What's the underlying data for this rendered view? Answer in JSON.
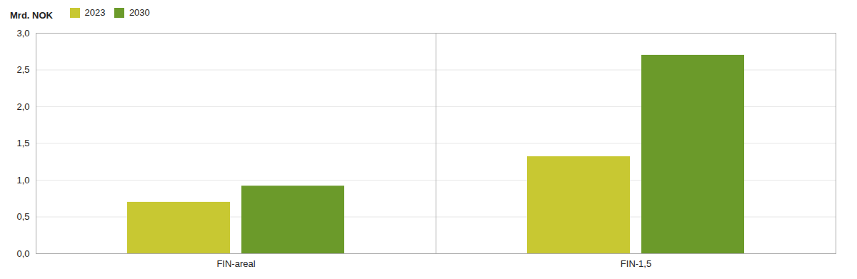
{
  "chart_data": {
    "type": "bar",
    "ylabel": "Mrd. NOK",
    "categories": [
      "FIN-areal",
      "FIN-1,5"
    ],
    "series": [
      {
        "name": "2023",
        "color": "#c8c832",
        "values": [
          0.7,
          1.32
        ]
      },
      {
        "name": "2030",
        "color": "#6b9a2a",
        "values": [
          0.92,
          2.7
        ]
      }
    ],
    "ylim": [
      0,
      3.0
    ],
    "yticks": [
      {
        "value": 0.0,
        "label": "0,0"
      },
      {
        "value": 0.5,
        "label": "0,5"
      },
      {
        "value": 1.0,
        "label": "1,0"
      },
      {
        "value": 1.5,
        "label": "1,5"
      },
      {
        "value": 2.0,
        "label": "2,0"
      },
      {
        "value": 2.5,
        "label": "2,5"
      },
      {
        "value": 3.0,
        "label": "3,0"
      }
    ],
    "grid": true,
    "legend": "upper left"
  }
}
